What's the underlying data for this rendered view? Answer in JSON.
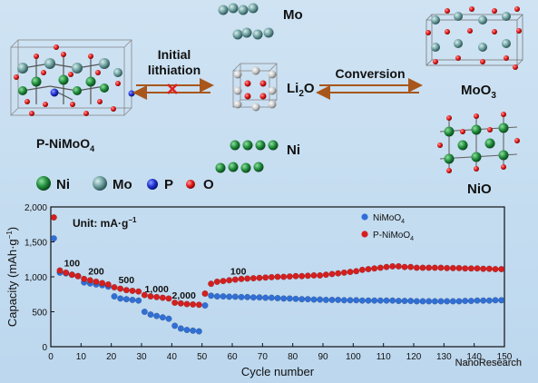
{
  "labels": {
    "mo": "Mo",
    "li2o_main": "Li",
    "li2o_sub": "2",
    "li2o_tail": "O",
    "ni": "Ni",
    "initial_line1": "Initial",
    "initial_line2": "lithiation",
    "conversion": "Conversion",
    "moo3_main": "MoO",
    "moo3_sub": "3",
    "nio": "NiO",
    "pnimoo4_main": "P-NiMoO",
    "pnimoo4_sub": "4"
  },
  "legend_atoms": [
    {
      "name": "Ni",
      "color": "#1f8a3a"
    },
    {
      "name": "Mo",
      "color": "#6a9c9c"
    },
    {
      "name": "P",
      "color": "#1e2fd0"
    },
    {
      "name": "O",
      "color": "#e01414"
    }
  ],
  "colors": {
    "arrow": "#a8561c",
    "cross": "#e02020",
    "nimoo4": "#2f6fd6",
    "pnimoo4": "#d61e1e"
  },
  "chart_data": {
    "type": "scatter",
    "ylabel_main": "Capacity (mAh·g",
    "ylabel_sup": "−1",
    "ylabel_tail": ")",
    "xlabel": "Cycle number",
    "unit_note": "Unit: mA·g",
    "unit_sup": "−1",
    "xlim": [
      0,
      150
    ],
    "ylim": [
      0,
      2000
    ],
    "xticks": [
      0,
      10,
      20,
      30,
      40,
      50,
      60,
      70,
      80,
      90,
      100,
      110,
      120,
      130,
      140,
      150
    ],
    "yticks": [
      0,
      500,
      1000,
      1500,
      2000
    ],
    "ytick_labels": [
      "0",
      "500",
      "1,000",
      "1,500",
      "2,000"
    ],
    "rate_labels": [
      {
        "text": "100",
        "x": 7,
        "y": 1150
      },
      {
        "text": "200",
        "x": 15,
        "y": 1030
      },
      {
        "text": "500",
        "x": 25,
        "y": 910
      },
      {
        "text": "1,000",
        "x": 35,
        "y": 780
      },
      {
        "text": "2,000",
        "x": 44,
        "y": 690
      },
      {
        "text": "100",
        "x": 62,
        "y": 1030
      }
    ],
    "series": [
      {
        "name_main": "NiMoO",
        "name_sub": "4",
        "color": "#2f6fd6",
        "x": [
          1,
          3,
          5,
          7,
          9,
          11,
          13,
          15,
          17,
          19,
          21,
          23,
          25,
          27,
          29,
          31,
          33,
          35,
          37,
          39,
          41,
          43,
          45,
          47,
          49,
          51,
          53,
          55,
          57,
          59,
          61,
          63,
          65,
          67,
          69,
          71,
          73,
          75,
          77,
          79,
          81,
          83,
          85,
          87,
          89,
          91,
          93,
          95,
          97,
          99,
          101,
          103,
          105,
          107,
          109,
          111,
          113,
          115,
          117,
          119,
          121,
          123,
          125,
          127,
          129,
          131,
          133,
          135,
          137,
          139,
          141,
          143,
          145,
          147,
          149
        ],
        "y": [
          1550,
          1060,
          1050,
          1030,
          1010,
          920,
          905,
          890,
          880,
          860,
          720,
          690,
          680,
          670,
          660,
          500,
          460,
          440,
          420,
          400,
          300,
          260,
          240,
          230,
          220,
          590,
          730,
          720,
          720,
          715,
          715,
          710,
          710,
          705,
          705,
          700,
          700,
          695,
          690,
          690,
          685,
          680,
          680,
          675,
          675,
          670,
          670,
          670,
          665,
          665,
          665,
          660,
          660,
          660,
          660,
          660,
          660,
          655,
          655,
          655,
          650,
          650,
          650,
          650,
          650,
          650,
          650,
          650,
          655,
          655,
          660,
          660,
          660,
          665,
          665
        ]
      },
      {
        "name_main": "P-NiMoO",
        "name_sub": "4",
        "color": "#d61e1e",
        "x": [
          1,
          3,
          5,
          7,
          9,
          11,
          13,
          15,
          17,
          19,
          21,
          23,
          25,
          27,
          29,
          31,
          33,
          35,
          37,
          39,
          41,
          43,
          45,
          47,
          49,
          51,
          53,
          55,
          57,
          59,
          61,
          63,
          65,
          67,
          69,
          71,
          73,
          75,
          77,
          79,
          81,
          83,
          85,
          87,
          89,
          91,
          93,
          95,
          97,
          99,
          101,
          103,
          105,
          107,
          109,
          111,
          113,
          115,
          117,
          119,
          121,
          123,
          125,
          127,
          129,
          131,
          133,
          135,
          137,
          139,
          141,
          143,
          145,
          147,
          149
        ],
        "y": [
          1850,
          1090,
          1060,
          1030,
          1010,
          970,
          950,
          930,
          910,
          890,
          850,
          830,
          810,
          800,
          790,
          740,
          720,
          710,
          700,
          690,
          630,
          620,
          610,
          605,
          600,
          760,
          900,
          930,
          940,
          950,
          960,
          970,
          975,
          980,
          985,
          990,
          995,
          1000,
          1000,
          1005,
          1010,
          1010,
          1015,
          1020,
          1020,
          1030,
          1040,
          1050,
          1060,
          1070,
          1080,
          1100,
          1110,
          1120,
          1130,
          1140,
          1150,
          1150,
          1140,
          1140,
          1130,
          1130,
          1130,
          1130,
          1130,
          1125,
          1125,
          1125,
          1120,
          1120,
          1120,
          1115,
          1115,
          1110,
          1110
        ]
      }
    ]
  },
  "watermark": "NanoResearch"
}
